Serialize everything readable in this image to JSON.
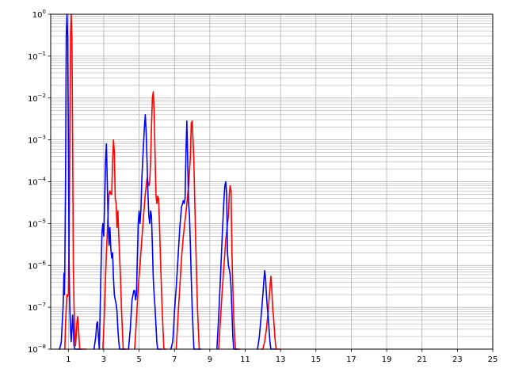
{
  "chart_data": {
    "type": "line",
    "title": "",
    "xlabel": "",
    "ylabel": "",
    "xlim": [
      0,
      25
    ],
    "ylim": [
      1e-08,
      1
    ],
    "yscale": "log",
    "grid": true,
    "grid_minor_y": true,
    "x_ticks": [
      1,
      3,
      5,
      7,
      9,
      11,
      13,
      15,
      17,
      19,
      21,
      23,
      25
    ],
    "y_ticks": [
      {
        "value": 1e-08,
        "base": "10",
        "exp": "−8"
      },
      {
        "value": 1e-07,
        "base": "10",
        "exp": "−7"
      },
      {
        "value": 1e-06,
        "base": "10",
        "exp": "−6"
      },
      {
        "value": 1e-05,
        "base": "10",
        "exp": "−5"
      },
      {
        "value": 0.0001,
        "base": "10",
        "exp": "−4"
      },
      {
        "value": 0.001,
        "base": "10",
        "exp": "−3"
      },
      {
        "value": 0.01,
        "base": "10",
        "exp": "−2"
      },
      {
        "value": 0.1,
        "base": "10",
        "exp": "−1"
      },
      {
        "value": 1,
        "base": "10",
        "exp": "0"
      }
    ],
    "series": [
      {
        "color": "#ff0000",
        "x": [
          0.8,
          0.84,
          0.88,
          0.92,
          0.96,
          1.0,
          1.04,
          1.08,
          1.12,
          1.16,
          1.2,
          1.24,
          1.28,
          1.32,
          1.36,
          1.4,
          1.44,
          1.48,
          1.52,
          1.56,
          1.6,
          1.64,
          1.68,
          1.72,
          1.76,
          1.8,
          1.84,
          1.88,
          1.92,
          1.96,
          2.0
        ],
        "y": [
          1e-08,
          4e-08,
          1e-07,
          2e-07,
          1.8e-07,
          2e-07,
          3e-06,
          0.001,
          0.3,
          1,
          0.3,
          0.001,
          1e-06,
          1e-07,
          3e-08,
          1.2e-08,
          2e-08,
          4e-08,
          6e-08,
          4e-08,
          2e-08,
          1e-08,
          1e-08,
          1e-08,
          1e-08,
          1e-08,
          1e-08,
          1e-08,
          1e-08,
          1e-08,
          1e-08
        ]
      },
      {
        "color": "#ff0000",
        "x": [
          2.95,
          3.0,
          3.05,
          3.1,
          3.15,
          3.2,
          3.25,
          3.3,
          3.35,
          3.4,
          3.45,
          3.5,
          3.55,
          3.6,
          3.65,
          3.7,
          3.75,
          3.8,
          3.85,
          3.9,
          3.95,
          4.0,
          4.05,
          4.1,
          4.15,
          4.2,
          4.25,
          4.3,
          4.35,
          4.4
        ],
        "y": [
          1e-08,
          3e-08,
          1e-07,
          5e-07,
          2e-06,
          6e-06,
          2e-05,
          5e-05,
          6e-05,
          5e-05,
          5e-05,
          0.0003,
          0.001,
          0.0005,
          4e-05,
          3e-05,
          8e-06,
          2e-05,
          5e-06,
          1.5e-06,
          5e-07,
          1e-07,
          3e-08,
          1e-08,
          1e-08,
          1e-08,
          1e-08,
          1e-08,
          1e-08,
          1e-08
        ]
      },
      {
        "color": "#ff0000",
        "x": [
          4.75,
          4.85,
          4.95,
          5.05,
          5.15,
          5.25,
          5.35,
          5.45,
          5.55,
          5.6,
          5.65,
          5.7,
          5.75,
          5.8,
          5.85,
          5.9,
          5.95,
          6.0,
          6.05,
          6.1,
          6.15,
          6.2,
          6.25,
          6.3,
          6.35,
          6.4,
          6.45,
          6.5,
          6.55
        ],
        "y": [
          1e-08,
          5e-08,
          3e-07,
          1e-06,
          4e-06,
          1.5e-05,
          5e-05,
          0.00012,
          8e-05,
          0.0001,
          0.0003,
          0.002,
          0.01,
          0.014,
          0.005,
          0.0005,
          5e-05,
          3e-05,
          4.5e-05,
          4e-05,
          1e-05,
          2e-06,
          4e-07,
          1e-07,
          3e-08,
          1e-08,
          1e-08,
          1e-08,
          1e-08
        ]
      },
      {
        "color": "#ff0000",
        "x": [
          7.1,
          7.2,
          7.3,
          7.4,
          7.5,
          7.6,
          7.7,
          7.8,
          7.9,
          7.95,
          8.0,
          8.05,
          8.1,
          8.15,
          8.2,
          8.25,
          8.3,
          8.35,
          8.4,
          8.45
        ],
        "y": [
          1e-08,
          6e-08,
          3e-07,
          1.5e-06,
          5e-06,
          1.2e-05,
          3e-05,
          8e-05,
          0.0004,
          0.0025,
          0.0028,
          0.001,
          0.0003,
          3e-05,
          4e-06,
          6e-07,
          1e-07,
          3e-08,
          1e-08,
          1e-08
        ]
      },
      {
        "color": "#ff0000",
        "x": [
          9.5,
          9.6,
          9.7,
          9.8,
          9.9,
          10.0,
          10.05,
          10.1,
          10.15,
          10.2,
          10.25,
          10.3,
          10.35,
          10.4,
          10.45,
          10.5,
          10.55,
          10.6,
          10.65,
          10.7
        ],
        "y": [
          1e-08,
          5e-08,
          2.5e-07,
          1e-06,
          4e-06,
          1e-05,
          1.5e-05,
          5e-05,
          8e-05,
          6e-05,
          2e-06,
          3e-07,
          6e-08,
          2e-08,
          1e-08,
          1e-08,
          1e-08,
          1e-08,
          1e-08,
          1e-08
        ]
      },
      {
        "color": "#ff0000",
        "x": [
          11.9,
          12.0,
          12.1,
          12.2,
          12.3,
          12.35,
          12.4,
          12.45,
          12.5,
          12.55,
          12.6,
          12.65,
          12.7,
          12.75,
          12.8,
          12.85,
          12.9,
          12.95
        ],
        "y": [
          1e-08,
          1e-08,
          1.5e-08,
          3e-08,
          8e-08,
          1.5e-07,
          3e-07,
          5.5e-07,
          3e-07,
          1e-07,
          6e-08,
          3e-08,
          1.5e-08,
          1e-08,
          1e-08,
          1e-08,
          1e-08,
          1e-08
        ]
      },
      {
        "color": "#0000ff",
        "x": [
          0.5,
          0.55,
          0.6,
          0.65,
          0.7,
          0.72,
          0.75,
          0.78,
          0.8,
          0.84,
          0.88,
          0.92,
          0.96,
          1.0,
          1.04,
          1.08,
          1.12,
          1.16,
          1.2,
          1.24,
          1.28,
          1.32,
          1.36,
          1.4,
          1.44,
          1.48,
          1.52,
          1.56,
          1.6,
          1.64
        ],
        "y": [
          1e-08,
          1.2e-08,
          1.5e-08,
          4e-08,
          1e-07,
          2e-07,
          6.5e-07,
          2e-07,
          1e-06,
          0.0001,
          0.3,
          1,
          0.3,
          0.001,
          1e-06,
          1e-07,
          3e-08,
          1.5e-08,
          3e-08,
          6.5e-08,
          3e-08,
          1.2e-08,
          1e-08,
          1e-08,
          1e-08,
          1e-08,
          1e-08,
          1e-08,
          1e-08,
          1e-08
        ]
      },
      {
        "color": "#0000ff",
        "x": [
          2.45,
          2.55,
          2.6,
          2.65,
          2.7,
          2.75,
          2.8,
          2.85,
          2.9,
          2.95,
          3.0,
          3.05,
          3.1,
          3.15,
          3.2,
          3.25,
          3.3,
          3.35,
          3.4,
          3.45,
          3.5,
          3.55,
          3.6,
          3.65,
          3.7,
          3.75,
          3.8,
          3.85,
          3.9,
          3.95,
          4.0,
          4.05,
          4.1,
          4.15,
          4.2
        ],
        "y": [
          1e-08,
          2e-08,
          4e-08,
          4.5e-08,
          2e-08,
          1e-08,
          1e-07,
          1e-06,
          6e-06,
          1e-05,
          5e-06,
          3e-05,
          0.0003,
          0.0008,
          0.0001,
          1e-05,
          3e-06,
          8e-06,
          2.5e-06,
          1.5e-06,
          2e-06,
          5e-07,
          2e-07,
          1.5e-07,
          1.2e-07,
          8e-08,
          3e-08,
          1.5e-08,
          1e-08,
          1e-08,
          1e-08,
          1e-08,
          1e-08,
          1e-08,
          1e-08
        ]
      },
      {
        "color": "#0000ff",
        "x": [
          4.4,
          4.5,
          4.6,
          4.7,
          4.75,
          4.8,
          4.85,
          4.9,
          4.95,
          5.0,
          5.05,
          5.1,
          5.15,
          5.2,
          5.25,
          5.3,
          5.35,
          5.4,
          5.45,
          5.5,
          5.55,
          5.6,
          5.65,
          5.7,
          5.75,
          5.8,
          5.85,
          5.9,
          5.95,
          6.0,
          6.05,
          6.1,
          6.15,
          6.2,
          6.25,
          6.3
        ],
        "y": [
          1e-08,
          3e-08,
          1.5e-07,
          2.5e-07,
          2.5e-07,
          1.5e-07,
          2e-07,
          1.5e-06,
          1e-05,
          2e-05,
          1e-05,
          2e-05,
          0.0001,
          0.0003,
          0.0008,
          0.002,
          0.004,
          0.0015,
          0.0003,
          5e-05,
          1.5e-05,
          1e-05,
          2e-05,
          1.5e-05,
          3e-06,
          5e-07,
          2e-07,
          1e-07,
          4e-08,
          1.5e-08,
          1e-08,
          1e-08,
          1e-08,
          1e-08,
          1e-08,
          1e-08
        ]
      },
      {
        "color": "#0000ff",
        "x": [
          6.8,
          6.9,
          6.95,
          7.0,
          7.1,
          7.2,
          7.3,
          7.4,
          7.5,
          7.55,
          7.6,
          7.65,
          7.7,
          7.75,
          7.8,
          7.85,
          7.9,
          7.95,
          8.0,
          8.05,
          8.1,
          8.15,
          8.2,
          8.25,
          8.3,
          8.35,
          8.4,
          8.45,
          8.5
        ],
        "y": [
          1e-08,
          1.5e-08,
          3e-08,
          8e-08,
          3e-07,
          1.5e-06,
          8e-06,
          2.5e-05,
          3.5e-05,
          3e-05,
          4e-05,
          0.0005,
          0.0028,
          0.0003,
          3e-05,
          1.5e-05,
          3e-06,
          5e-07,
          1e-07,
          3e-08,
          1e-08,
          1e-08,
          1e-08,
          1e-08,
          1e-08,
          1e-08,
          1e-08,
          1e-08,
          1e-08
        ]
      },
      {
        "color": "#0000ff",
        "x": [
          9.4,
          9.5,
          9.6,
          9.7,
          9.8,
          9.85,
          9.9,
          9.95,
          10.0,
          10.05,
          10.1,
          10.15,
          10.2,
          10.25,
          10.3,
          10.35,
          10.4,
          10.45,
          10.5,
          10.55
        ],
        "y": [
          1e-08,
          6e-08,
          5e-07,
          5e-06,
          4e-05,
          8e-05,
          0.0001,
          5e-05,
          2e-06,
          1e-06,
          8e-07,
          6e-07,
          3e-07,
          8e-08,
          2e-08,
          1e-08,
          1e-08,
          1e-08,
          1e-08,
          1e-08
        ]
      },
      {
        "color": "#0000ff",
        "x": [
          11.7,
          11.8,
          11.9,
          12.0,
          12.05,
          12.1,
          12.15,
          12.2,
          12.25,
          12.3,
          12.35,
          12.4,
          12.45,
          12.5,
          12.55,
          12.6,
          12.65,
          12.7
        ],
        "y": [
          1e-08,
          2e-08,
          6e-08,
          2e-07,
          4e-07,
          7.5e-07,
          5e-07,
          2e-07,
          1e-07,
          6e-08,
          3e-08,
          1.5e-08,
          1e-08,
          1e-08,
          1e-08,
          1e-08,
          1e-08,
          1e-08
        ]
      }
    ]
  }
}
